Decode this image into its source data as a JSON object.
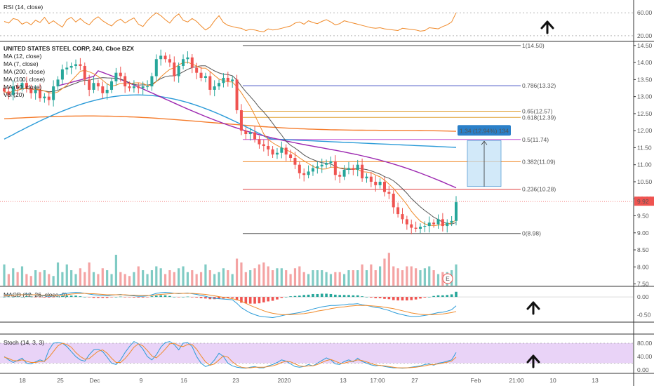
{
  "chart_data": {
    "type": "candlestick",
    "title": "UNITED STATES STEEL CORP, 240, Cboe BZX",
    "legend": [
      "MA (12, close)",
      "MA (7, close)",
      "MA (200, close)",
      "MA (100, close)",
      "MA (50, close)",
      "Vol (20)"
    ],
    "price_axis": {
      "ylim": [
        7.5,
        14.6
      ],
      "ticks": [
        14.5,
        14.0,
        13.5,
        13.0,
        12.5,
        12.0,
        11.5,
        11.0,
        10.5,
        10.0,
        9.5,
        9.0,
        8.5,
        8.0,
        7.5
      ],
      "tick_labels": [
        "14.50",
        "14.00",
        "13.50",
        "13.00",
        "12.50",
        "12.00",
        "11.50",
        "11.00",
        "10.50",
        "10.00",
        "9.50",
        "9.00",
        "8.50",
        "8.00",
        "7.50"
      ],
      "last_price": "9.92",
      "last_price_value": 9.92
    },
    "x_labels": [
      "18",
      "25",
      "Dec",
      "9",
      "16",
      "23",
      "2020",
      "13",
      "17:00",
      "27",
      "Feb",
      "21:00",
      "10",
      "13"
    ],
    "closes": [
      13.15,
      13.05,
      13.3,
      13.25,
      13.4,
      13.25,
      13.1,
      13.2,
      12.95,
      13.0,
      12.9,
      13.3,
      13.5,
      13.8,
      13.85,
      13.9,
      13.95,
      13.9,
      13.5,
      13.2,
      13.4,
      13.3,
      13.1,
      13.2,
      13.45,
      13.7,
      13.6,
      13.3,
      13.25,
      13.3,
      13.25,
      13.3,
      13.3,
      13.6,
      14.1,
      14.2,
      14.1,
      14.0,
      13.6,
      13.9,
      14.1,
      14.15,
      13.85,
      13.7,
      13.55,
      13.6,
      13.2,
      13.3,
      13.4,
      13.55,
      13.45,
      13.5,
      12.6,
      12.0,
      11.9,
      11.95,
      11.75,
      11.6,
      11.55,
      11.45,
      11.3,
      11.35,
      11.5,
      11.3,
      11.2,
      11.0,
      10.75,
      10.7,
      10.8,
      10.9,
      10.95,
      11.0,
      11.05,
      11.1,
      10.7,
      10.65,
      10.85,
      10.9,
      10.85,
      11.0,
      10.6,
      10.65,
      10.5,
      10.4,
      10.5,
      10.2,
      10.15,
      9.75,
      9.55,
      9.4,
      9.25,
      9.15,
      9.12,
      9.18,
      9.2,
      9.3,
      9.25,
      9.4,
      9.2,
      9.3,
      9.35,
      9.9
    ],
    "fib_levels": [
      {
        "label": "1(14.50)",
        "value": 14.5,
        "color": "#555555"
      },
      {
        "label": "0.786(13.32)",
        "value": 13.32,
        "color": "#4a58c8"
      },
      {
        "label": "0.65(12.57)",
        "value": 12.57,
        "color": "#e0a030"
      },
      {
        "label": "0.618(12.39)",
        "value": 12.39,
        "color": "#e0a030"
      },
      {
        "label": "0.5(11.74)",
        "value": 11.74,
        "color": "#c44fd0"
      },
      {
        "label": "0.382(11.09)",
        "value": 11.09,
        "color": "#f08a2a"
      },
      {
        "label": "0.236(10.28)",
        "value": 10.28,
        "color": "#e04040"
      },
      {
        "label": "0(8.98)",
        "value": 8.98,
        "color": "#555555"
      }
    ],
    "measure_box": {
      "label": "1.34 (12.94%) 134",
      "from": 10.36,
      "to": 11.71,
      "color": "#2b80c9"
    },
    "rsi": {
      "title": "RSI (14, close)",
      "ticks": [
        "60.00",
        "20.00"
      ],
      "values": [
        45,
        42,
        50,
        48,
        40,
        44,
        39,
        47,
        43,
        52,
        41,
        46,
        40,
        35,
        48,
        52,
        44,
        50,
        43,
        39,
        48,
        53,
        46,
        41,
        37,
        45,
        49,
        42,
        47,
        51,
        40,
        36,
        46,
        54,
        60,
        55,
        48,
        42,
        52,
        58,
        47,
        44,
        50,
        45,
        37,
        30,
        35,
        46,
        55,
        43,
        38,
        36,
        34,
        33,
        29,
        31,
        30,
        28,
        27,
        32,
        30,
        31,
        33,
        35,
        37,
        42,
        44,
        40,
        46,
        43,
        41,
        45,
        48,
        44,
        39,
        41,
        46,
        44,
        42,
        40,
        38,
        36,
        34,
        33,
        34,
        32,
        31,
        30,
        29,
        33,
        32,
        31,
        30,
        28,
        29,
        34,
        33,
        32,
        36,
        39,
        44,
        60
      ]
    },
    "macd": {
      "title": "MACD (12, 26, close, 9)",
      "ticks": [
        "0.00",
        "-0.50"
      ],
      "macd": [
        0.05,
        0.06,
        0.05,
        0.07,
        0.06,
        0.08,
        0.07,
        0.05,
        0.04,
        0.03,
        0.02,
        0.03,
        0.05,
        0.08,
        0.1,
        0.12,
        0.13,
        0.12,
        0.1,
        0.08,
        0.06,
        0.05,
        0.04,
        0.03,
        0.05,
        0.06,
        0.07,
        0.05,
        0.04,
        0.03,
        0.02,
        0.02,
        0.03,
        0.06,
        0.1,
        0.12,
        0.13,
        0.12,
        0.1,
        0.09,
        0.1,
        0.11,
        0.09,
        0.07,
        0.04,
        0.02,
        -0.02,
        -0.04,
        -0.05,
        -0.06,
        -0.07,
        -0.08,
        -0.18,
        -0.3,
        -0.38,
        -0.45,
        -0.5,
        -0.54,
        -0.56,
        -0.57,
        -0.58,
        -0.56,
        -0.53,
        -0.5,
        -0.48,
        -0.46,
        -0.44,
        -0.41,
        -0.38,
        -0.34,
        -0.31,
        -0.28,
        -0.26,
        -0.24,
        -0.24,
        -0.23,
        -0.22,
        -0.2,
        -0.2,
        -0.19,
        -0.22,
        -0.24,
        -0.27,
        -0.3,
        -0.31,
        -0.35,
        -0.38,
        -0.43,
        -0.47,
        -0.5,
        -0.53,
        -0.55,
        -0.55,
        -0.54,
        -0.52,
        -0.5,
        -0.47,
        -0.44,
        -0.43,
        -0.4,
        -0.36,
        -0.25
      ],
      "signal": [
        0.05,
        0.05,
        0.05,
        0.06,
        0.06,
        0.06,
        0.06,
        0.06,
        0.05,
        0.05,
        0.04,
        0.04,
        0.04,
        0.05,
        0.06,
        0.08,
        0.09,
        0.1,
        0.1,
        0.09,
        0.09,
        0.08,
        0.07,
        0.06,
        0.06,
        0.06,
        0.06,
        0.06,
        0.05,
        0.05,
        0.04,
        0.04,
        0.04,
        0.04,
        0.06,
        0.07,
        0.08,
        0.09,
        0.1,
        0.1,
        0.1,
        0.1,
        0.1,
        0.09,
        0.08,
        0.07,
        0.05,
        0.03,
        0.01,
        -0.01,
        -0.03,
        -0.05,
        -0.08,
        -0.12,
        -0.18,
        -0.24,
        -0.29,
        -0.34,
        -0.39,
        -0.43,
        -0.46,
        -0.48,
        -0.5,
        -0.5,
        -0.5,
        -0.49,
        -0.48,
        -0.47,
        -0.45,
        -0.43,
        -0.4,
        -0.38,
        -0.36,
        -0.33,
        -0.31,
        -0.29,
        -0.28,
        -0.26,
        -0.25,
        -0.24,
        -0.24,
        -0.24,
        -0.25,
        -0.26,
        -0.27,
        -0.29,
        -0.31,
        -0.33,
        -0.36,
        -0.39,
        -0.42,
        -0.45,
        -0.47,
        -0.49,
        -0.5,
        -0.5,
        -0.5,
        -0.49,
        -0.48,
        -0.46,
        -0.44,
        -0.41
      ]
    },
    "stoch": {
      "title": "Stoch (14, 3, 3)",
      "ticks": [
        "80.00",
        "40.00",
        "0.00"
      ],
      "k": [
        40,
        30,
        22,
        28,
        35,
        20,
        18,
        24,
        30,
        25,
        60,
        80,
        82,
        80,
        70,
        55,
        40,
        30,
        26,
        45,
        60,
        62,
        55,
        38,
        20,
        16,
        30,
        52,
        70,
        85,
        78,
        62,
        40,
        30,
        45,
        68,
        82,
        85,
        76,
        60,
        80,
        82,
        70,
        40,
        20,
        10,
        15,
        30,
        50,
        40,
        20,
        12,
        8,
        6,
        5,
        8,
        10,
        6,
        6,
        12,
        16,
        22,
        30,
        26,
        18,
        10,
        8,
        10,
        16,
        12,
        20,
        28,
        36,
        30,
        18,
        16,
        25,
        30,
        24,
        35,
        25,
        20,
        15,
        12,
        14,
        10,
        8,
        6,
        6,
        5,
        6,
        8,
        10,
        12,
        16,
        18,
        14,
        20,
        22,
        26,
        30,
        52
      ],
      "d": [
        38,
        34,
        28,
        27,
        30,
        26,
        22,
        22,
        25,
        26,
        38,
        55,
        72,
        80,
        76,
        68,
        52,
        40,
        32,
        34,
        45,
        56,
        60,
        50,
        35,
        22,
        22,
        34,
        50,
        68,
        78,
        72,
        58,
        42,
        36,
        48,
        62,
        78,
        80,
        72,
        70,
        76,
        76,
        62,
        42,
        24,
        14,
        18,
        30,
        42,
        38,
        24,
        14,
        8,
        6,
        6,
        8,
        8,
        8,
        10,
        12,
        16,
        22,
        26,
        24,
        18,
        12,
        10,
        12,
        12,
        16,
        22,
        28,
        31,
        26,
        20,
        20,
        24,
        26,
        30,
        28,
        24,
        19,
        15,
        13,
        12,
        10,
        8,
        6,
        6,
        6,
        7,
        8,
        10,
        12,
        15,
        16,
        18,
        20,
        23,
        26,
        38
      ]
    },
    "volumes": [
      0.55,
      0.3,
      0.45,
      0.35,
      0.5,
      0.3,
      0.25,
      0.4,
      0.35,
      0.4,
      0.3,
      0.25,
      0.6,
      0.35,
      0.55,
      0.4,
      0.3,
      0.45,
      0.35,
      0.6,
      0.35,
      0.3,
      0.45,
      0.4,
      0.3,
      0.8,
      0.35,
      0.3,
      0.25,
      0.35,
      0.5,
      0.4,
      0.3,
      0.4,
      0.5,
      0.45,
      0.3,
      0.4,
      0.35,
      0.45,
      0.5,
      0.35,
      0.4,
      0.3,
      0.35,
      0.55,
      0.4,
      0.3,
      0.35,
      0.45,
      0.4,
      0.3,
      0.7,
      0.6,
      0.35,
      0.4,
      0.45,
      0.55,
      0.6,
      0.5,
      0.4,
      0.45,
      0.45,
      0.4,
      0.3,
      0.45,
      0.5,
      0.35,
      0.3,
      0.4,
      0.4,
      0.4,
      0.35,
      0.3,
      0.35,
      0.35,
      0.3,
      0.4,
      0.4,
      0.4,
      0.55,
      0.4,
      0.55,
      0.4,
      0.5,
      0.7,
      0.85,
      0.5,
      0.45,
      0.4,
      0.5,
      0.5,
      0.45,
      0.4,
      0.45,
      0.5,
      0.4,
      0.3,
      0.35,
      0.35,
      0.4,
      0.55
    ]
  },
  "ui": {
    "arrow_icon": "up-arrow-icon",
    "event_badge": "E",
    "colors": {
      "up": "#26a69a",
      "down": "#ef5350",
      "ma12": "#555555",
      "ma7": "#f08a2a",
      "ma200": "#f57c2c",
      "ma100": "#2b9bd8",
      "ma50": "#9c27b0"
    }
  }
}
